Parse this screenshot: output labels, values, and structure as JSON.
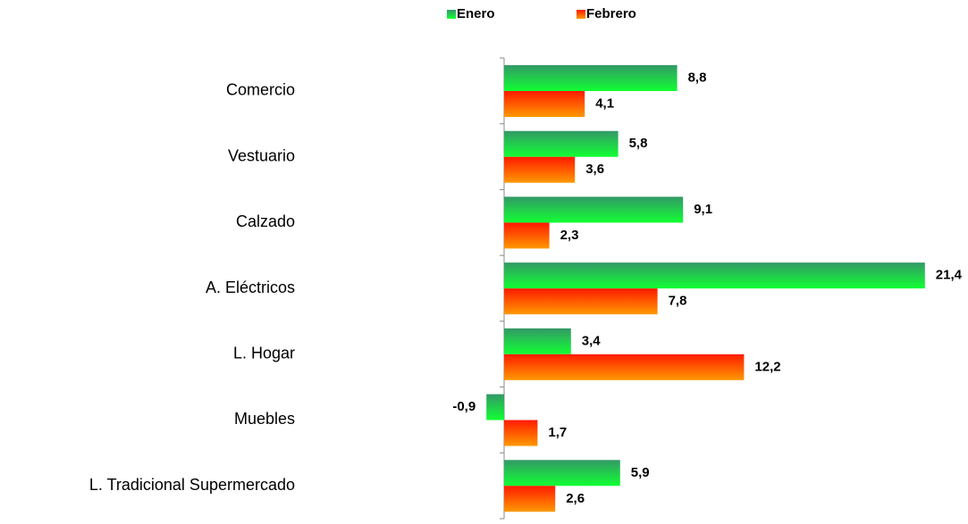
{
  "chart_data": {
    "type": "bar",
    "orientation": "horizontal",
    "categories": [
      "Comercio",
      "Vestuario",
      "Calzado",
      "A. Eléctricos",
      "L. Hogar",
      "Muebles",
      "L. Tradicional Supermercado"
    ],
    "series": [
      {
        "name": "Enero",
        "color": [
          "#339966",
          "#11ff33"
        ],
        "values": [
          8.8,
          5.8,
          9.1,
          21.4,
          3.4,
          -0.9,
          5.9
        ],
        "value_labels": [
          "8,8",
          "5,8",
          "9,1",
          "21,4",
          "3,4",
          "-0,9",
          "5,9"
        ]
      },
      {
        "name": "Febrero",
        "color": [
          "#ff1a00",
          "#ff9900"
        ],
        "values": [
          4.1,
          3.6,
          2.3,
          7.8,
          12.2,
          1.7,
          2.6
        ],
        "value_labels": [
          "4,1",
          "3,6",
          "2,3",
          "7,8",
          "12,2",
          "1,7",
          "2,6"
        ]
      }
    ],
    "xlim": [
      -1,
      22
    ],
    "legend": "top"
  }
}
